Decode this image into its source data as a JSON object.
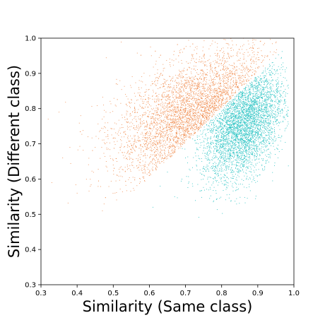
{
  "chart_data": {
    "type": "scatter",
    "title": "",
    "xlabel": "Similarity (Same class)",
    "ylabel": "Similarity (Different class)",
    "xlim": [
      0.3,
      1.0
    ],
    "ylim": [
      0.3,
      1.0
    ],
    "xticks": [
      "0.3",
      "0.4",
      "0.5",
      "0.6",
      "0.7",
      "0.8",
      "0.9",
      "1.0"
    ],
    "yticks": [
      "0.3",
      "0.4",
      "0.5",
      "0.6",
      "0.7",
      "0.8",
      "0.9",
      "1.0"
    ],
    "grid": false,
    "legend": "none",
    "series": [
      {
        "color": "#f08a4b",
        "rule": "y > x",
        "approx_points": 4000,
        "points": [
          [
            0.32,
            0.77
          ],
          [
            0.33,
            0.59
          ],
          [
            0.35,
            0.79
          ],
          [
            0.36,
            0.66
          ],
          [
            0.38,
            0.69
          ],
          [
            0.4,
            0.56
          ],
          [
            0.41,
            0.78
          ],
          [
            0.43,
            0.72
          ],
          [
            0.45,
            0.69
          ],
          [
            0.47,
            0.51
          ],
          [
            0.48,
            0.72
          ],
          [
            0.5,
            0.64
          ],
          [
            0.52,
            0.73
          ],
          [
            0.54,
            0.76
          ],
          [
            0.55,
            0.86
          ],
          [
            0.57,
            0.71
          ],
          [
            0.59,
            0.66
          ],
          [
            0.6,
            0.79
          ],
          [
            0.62,
            0.82
          ],
          [
            0.63,
            0.67
          ],
          [
            0.65,
            0.88
          ],
          [
            0.66,
            0.74
          ],
          [
            0.68,
            0.83
          ],
          [
            0.7,
            0.78
          ],
          [
            0.71,
            0.89
          ],
          [
            0.73,
            0.8
          ],
          [
            0.75,
            0.86
          ],
          [
            0.77,
            0.93
          ],
          [
            0.78,
            0.82
          ],
          [
            0.8,
            0.88
          ],
          [
            0.82,
            0.9
          ],
          [
            0.84,
            0.87
          ],
          [
            0.86,
            0.94
          ],
          [
            0.88,
            0.92
          ],
          [
            0.9,
            0.96
          ],
          [
            0.92,
            0.95
          ]
        ]
      },
      {
        "color": "#1fc0c0",
        "rule": "y < x",
        "approx_points": 4000,
        "points": [
          [
            0.61,
            0.52
          ],
          [
            0.63,
            0.58
          ],
          [
            0.65,
            0.62
          ],
          [
            0.67,
            0.55
          ],
          [
            0.69,
            0.6
          ],
          [
            0.7,
            0.66
          ],
          [
            0.72,
            0.58
          ],
          [
            0.74,
            0.69
          ],
          [
            0.75,
            0.63
          ],
          [
            0.77,
            0.72
          ],
          [
            0.78,
            0.66
          ],
          [
            0.8,
            0.74
          ],
          [
            0.81,
            0.61
          ],
          [
            0.82,
            0.77
          ],
          [
            0.83,
            0.7
          ],
          [
            0.84,
            0.79
          ],
          [
            0.85,
            0.68
          ],
          [
            0.86,
            0.81
          ],
          [
            0.87,
            0.74
          ],
          [
            0.88,
            0.84
          ],
          [
            0.89,
            0.77
          ],
          [
            0.9,
            0.86
          ],
          [
            0.91,
            0.8
          ],
          [
            0.92,
            0.88
          ],
          [
            0.93,
            0.83
          ],
          [
            0.94,
            0.78
          ],
          [
            0.95,
            0.9
          ],
          [
            0.96,
            0.85
          ],
          [
            0.97,
            0.93
          ],
          [
            0.98,
            0.88
          ]
        ]
      }
    ]
  }
}
